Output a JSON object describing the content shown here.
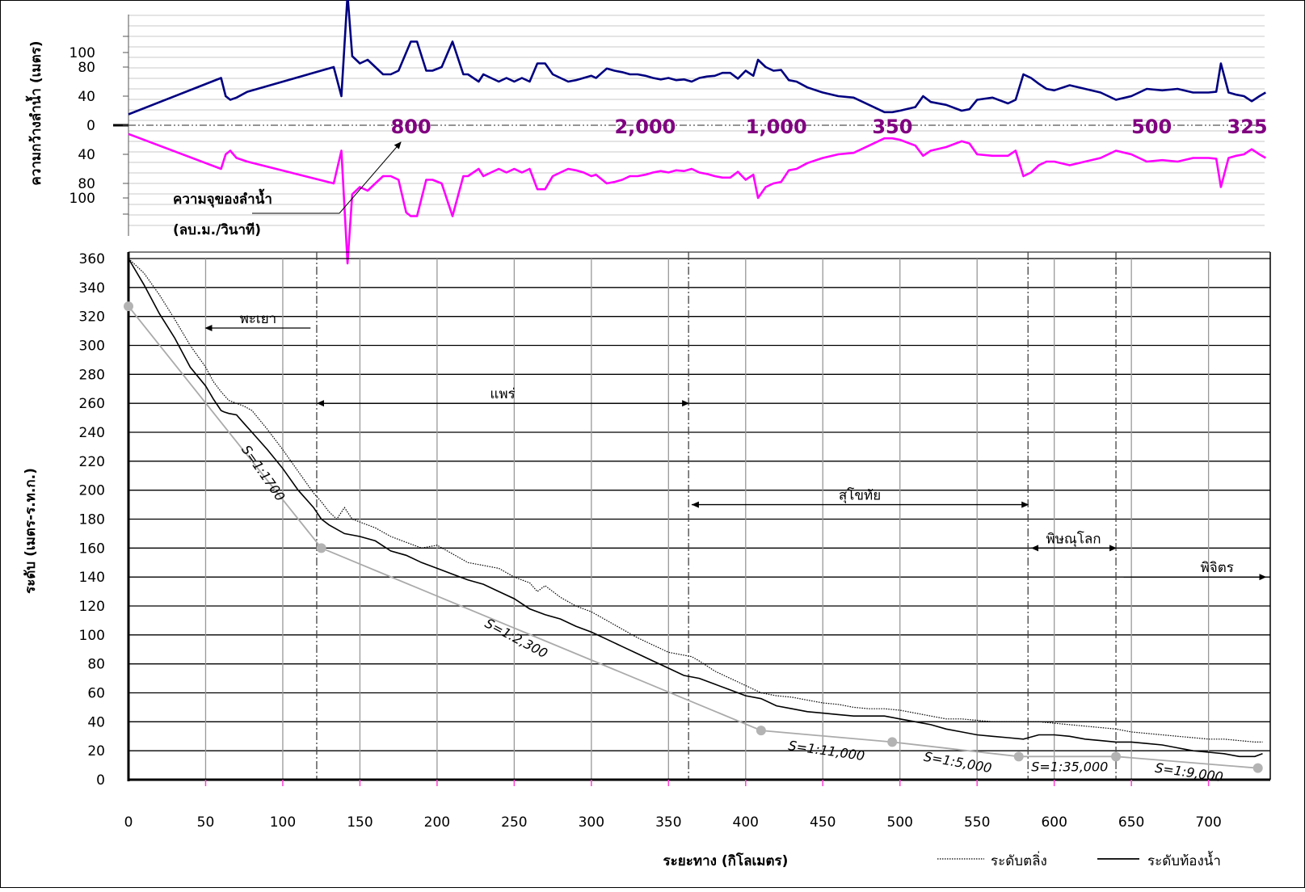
{
  "chart_data": [
    {
      "type": "line",
      "title": "",
      "ylabel": "ความกว้างลำน้ำ (เมตร)",
      "xlim": [
        0,
        740
      ],
      "ylim": [
        -130,
        150
      ],
      "yticks": [
        "100",
        "80",
        "40",
        "0",
        "40",
        "80",
        "100"
      ],
      "series": [
        {
          "name": "top",
          "color": "#000080",
          "x": [
            0,
            60,
            63,
            66,
            70,
            77,
            133,
            138,
            142,
            145,
            150,
            155,
            160,
            165,
            170,
            175,
            180,
            183,
            187,
            193,
            197,
            203,
            210,
            217,
            220,
            227,
            230,
            235,
            240,
            245,
            250,
            255,
            260,
            265,
            270,
            275,
            280,
            285,
            290,
            295,
            300,
            303,
            310,
            315,
            320,
            325,
            330,
            335,
            340,
            345,
            350,
            355,
            360,
            365,
            370,
            375,
            380,
            385,
            390,
            395,
            400,
            405,
            408,
            413,
            418,
            423,
            428,
            433,
            440,
            450,
            460,
            470,
            480,
            490,
            495,
            500,
            510,
            515,
            520,
            530,
            540,
            545,
            550,
            560,
            570,
            575,
            580,
            585,
            590,
            595,
            600,
            610,
            620,
            630,
            640,
            650,
            660,
            670,
            680,
            690,
            700,
            705,
            708,
            713,
            718,
            723,
            728,
            733,
            737
          ],
          "y": [
            15,
            65,
            40,
            35,
            38,
            46,
            80,
            40,
            180,
            95,
            85,
            90,
            80,
            70,
            70,
            75,
            100,
            115,
            115,
            75,
            75,
            80,
            115,
            70,
            70,
            60,
            70,
            65,
            60,
            65,
            60,
            65,
            60,
            85,
            85,
            70,
            65,
            60,
            62,
            65,
            68,
            65,
            78,
            75,
            73,
            70,
            70,
            68,
            65,
            63,
            65,
            62,
            63,
            60,
            65,
            67,
            68,
            72,
            72,
            64,
            75,
            68,
            90,
            80,
            75,
            76,
            62,
            60,
            52,
            45,
            40,
            38,
            28,
            18,
            18,
            20,
            25,
            40,
            32,
            28,
            20,
            22,
            35,
            38,
            30,
            35,
            70,
            65,
            57,
            50,
            48,
            55,
            50,
            45,
            35,
            40,
            50,
            48,
            50,
            45,
            45,
            46,
            85,
            45,
            42,
            40,
            33,
            40,
            45
          ]
        },
        {
          "name": "bottom",
          "color": "#FF00FF",
          "x": [
            0,
            60,
            63,
            66,
            70,
            77,
            133,
            138,
            142,
            145,
            150,
            155,
            160,
            165,
            170,
            175,
            180,
            183,
            187,
            193,
            197,
            203,
            210,
            217,
            220,
            227,
            230,
            235,
            240,
            245,
            250,
            255,
            260,
            265,
            270,
            275,
            280,
            285,
            290,
            295,
            300,
            303,
            310,
            315,
            320,
            325,
            330,
            335,
            340,
            345,
            350,
            355,
            360,
            365,
            370,
            375,
            380,
            385,
            390,
            395,
            400,
            405,
            408,
            413,
            418,
            423,
            428,
            433,
            440,
            450,
            460,
            470,
            480,
            490,
            495,
            500,
            510,
            515,
            520,
            530,
            540,
            545,
            550,
            560,
            570,
            575,
            580,
            585,
            590,
            595,
            600,
            610,
            620,
            630,
            640,
            650,
            660,
            670,
            680,
            690,
            700,
            705,
            708,
            713,
            718,
            723,
            728,
            733,
            737
          ],
          "y": [
            -12,
            -60,
            -40,
            -35,
            -45,
            -50,
            -80,
            -35,
            -190,
            -95,
            -85,
            -90,
            -80,
            -70,
            -70,
            -75,
            -120,
            -125,
            -125,
            -75,
            -75,
            -80,
            -125,
            -70,
            -70,
            -60,
            -70,
            -65,
            -60,
            -65,
            -60,
            -65,
            -60,
            -88,
            -88,
            -70,
            -65,
            -60,
            -62,
            -65,
            -70,
            -68,
            -80,
            -78,
            -75,
            -70,
            -70,
            -68,
            -65,
            -63,
            -65,
            -62,
            -63,
            -60,
            -65,
            -67,
            -70,
            -72,
            -72,
            -64,
            -75,
            -68,
            -100,
            -85,
            -80,
            -78,
            -62,
            -60,
            -52,
            -45,
            -40,
            -38,
            -28,
            -18,
            -18,
            -20,
            -28,
            -42,
            -35,
            -30,
            -22,
            -25,
            -40,
            -42,
            -42,
            -35,
            -70,
            -65,
            -55,
            -50,
            -50,
            -55,
            -50,
            -45,
            -35,
            -40,
            -50,
            -48,
            -50,
            -45,
            -45,
            -46,
            -85,
            -45,
            -42,
            -40,
            -33,
            -40,
            -45
          ]
        }
      ],
      "discharge_label": "ความจุของลำน้ำ",
      "discharge_unit": "(ลบ.ม./วินาที)",
      "discharge_values": [
        {
          "value": "800",
          "x": 170
        },
        {
          "value": "2,000",
          "x": 315
        },
        {
          "value": "1,000",
          "x": 400
        },
        {
          "value": "350",
          "x": 482
        },
        {
          "value": "500",
          "x": 650
        },
        {
          "value": "325",
          "x": 712
        }
      ]
    },
    {
      "type": "line",
      "title": "",
      "xlabel": "ระยะทาง (กิโลเมตร)",
      "ylabel": "ระดับ (เมตร-ร.ท.ก.)",
      "xlim": [
        0,
        740
      ],
      "ylim": [
        0,
        360
      ],
      "xticks": [
        "0",
        "50",
        "100",
        "150",
        "200",
        "250",
        "300",
        "350",
        "400",
        "450",
        "500",
        "550",
        "600",
        "650",
        "700"
      ],
      "yticks": [
        "0",
        "20",
        "40",
        "60",
        "80",
        "100",
        "120",
        "140",
        "160",
        "180",
        "200",
        "220",
        "240",
        "260",
        "280",
        "300",
        "320",
        "340",
        "360"
      ],
      "grid": true,
      "series": [
        {
          "name": "ระดับตลิ่ง",
          "style": "dotted",
          "x": [
            0,
            10,
            20,
            30,
            40,
            50,
            55,
            60,
            65,
            70,
            75,
            80,
            90,
            100,
            110,
            120,
            125,
            130,
            135,
            140,
            145,
            150,
            160,
            170,
            180,
            190,
            200,
            210,
            220,
            230,
            240,
            250,
            255,
            260,
            265,
            270,
            280,
            290,
            300,
            310,
            320,
            330,
            340,
            350,
            360,
            365,
            370,
            380,
            390,
            400,
            410,
            420,
            430,
            440,
            450,
            460,
            470,
            480,
            490,
            500,
            510,
            520,
            530,
            540,
            550,
            560,
            570,
            580,
            590,
            600,
            610,
            620,
            630,
            640,
            650,
            660,
            670,
            680,
            690,
            700,
            710,
            720,
            730,
            735
          ],
          "y": [
            360,
            350,
            335,
            318,
            300,
            285,
            275,
            268,
            262,
            260,
            258,
            255,
            242,
            228,
            213,
            198,
            192,
            185,
            180,
            188,
            180,
            178,
            174,
            168,
            164,
            160,
            162,
            156,
            150,
            148,
            146,
            140,
            138,
            136,
            130,
            134,
            126,
            120,
            116,
            110,
            104,
            98,
            93,
            88,
            86,
            85,
            82,
            75,
            70,
            65,
            60,
            58,
            57,
            55,
            53,
            52,
            50,
            49,
            49,
            48,
            46,
            44,
            42,
            42,
            41,
            40,
            40,
            40,
            40,
            39,
            38,
            37,
            36,
            35,
            33,
            32,
            31,
            30,
            29,
            28,
            28,
            27,
            26,
            26
          ]
        },
        {
          "name": "ระดับท้องน้ำ",
          "style": "solid",
          "x": [
            0,
            10,
            20,
            30,
            40,
            50,
            55,
            60,
            62,
            65,
            70,
            75,
            80,
            90,
            100,
            110,
            120,
            125,
            130,
            140,
            150,
            160,
            170,
            180,
            190,
            200,
            210,
            220,
            230,
            240,
            250,
            260,
            270,
            280,
            290,
            300,
            310,
            320,
            330,
            340,
            350,
            360,
            370,
            380,
            390,
            400,
            410,
            420,
            430,
            440,
            450,
            460,
            470,
            480,
            490,
            500,
            510,
            520,
            530,
            540,
            550,
            560,
            570,
            580,
            590,
            600,
            610,
            620,
            630,
            640,
            650,
            660,
            670,
            680,
            690,
            700,
            710,
            720,
            730,
            735
          ],
          "y": [
            360,
            342,
            322,
            305,
            285,
            272,
            263,
            255,
            254,
            253,
            252,
            246,
            240,
            228,
            215,
            200,
            188,
            180,
            176,
            170,
            168,
            165,
            158,
            155,
            150,
            146,
            142,
            138,
            135,
            130,
            125,
            118,
            114,
            111,
            106,
            102,
            97,
            92,
            87,
            82,
            77,
            72,
            70,
            66,
            62,
            58,
            56,
            51,
            49,
            47,
            46,
            45,
            44,
            44,
            44,
            42,
            40,
            38,
            35,
            33,
            31,
            30,
            29,
            28,
            31,
            31,
            30,
            28,
            27,
            26,
            26,
            25,
            24,
            22,
            20,
            19,
            18,
            16,
            16,
            18
          ]
        },
        {
          "name": "slope",
          "style": "gray",
          "x": [
            0,
            125,
            410,
            495,
            577,
            640,
            732
          ],
          "y": [
            327,
            160,
            34,
            26,
            16,
            16,
            8
          ]
        }
      ],
      "regions": [
        {
          "name": "พะเยา",
          "start": 50,
          "end": 118,
          "arrow": "left"
        },
        {
          "name": "แพร่",
          "start": 122,
          "end": 363,
          "arrow": "both"
        },
        {
          "name": "สุโขทัย",
          "start": 365,
          "end": 583,
          "arrow": "both"
        },
        {
          "name": "พิษณุโลก",
          "start": 585,
          "end": 640,
          "arrow": "both"
        },
        {
          "name": "พิจิตร",
          "start": 645,
          "end": 737,
          "arrow": "right"
        }
      ],
      "boundaries": [
        122,
        363,
        583,
        640
      ],
      "slope_labels": [
        {
          "text": "S=1:1700",
          "x": 85,
          "y": 210,
          "angle": 55
        },
        {
          "text": "S=1:2,300",
          "x": 250,
          "y": 95,
          "angle": 28
        },
        {
          "text": "S=1:11,000",
          "x": 452,
          "y": 17,
          "angle": 8
        },
        {
          "text": "S=1:5,000",
          "x": 537,
          "y": 9,
          "angle": 10
        },
        {
          "text": "S=1:35,000",
          "x": 610,
          "y": 6,
          "angle": 0
        },
        {
          "text": "S=1:9,000",
          "x": 687,
          "y": 2,
          "angle": 8
        }
      ],
      "legend": {
        "position": "bottom-right",
        "items": [
          {
            "label": "ระดับตลิ่ง",
            "style": "dotted"
          },
          {
            "label": "ระดับท้องน้ำ",
            "style": "solid"
          }
        ]
      }
    }
  ]
}
